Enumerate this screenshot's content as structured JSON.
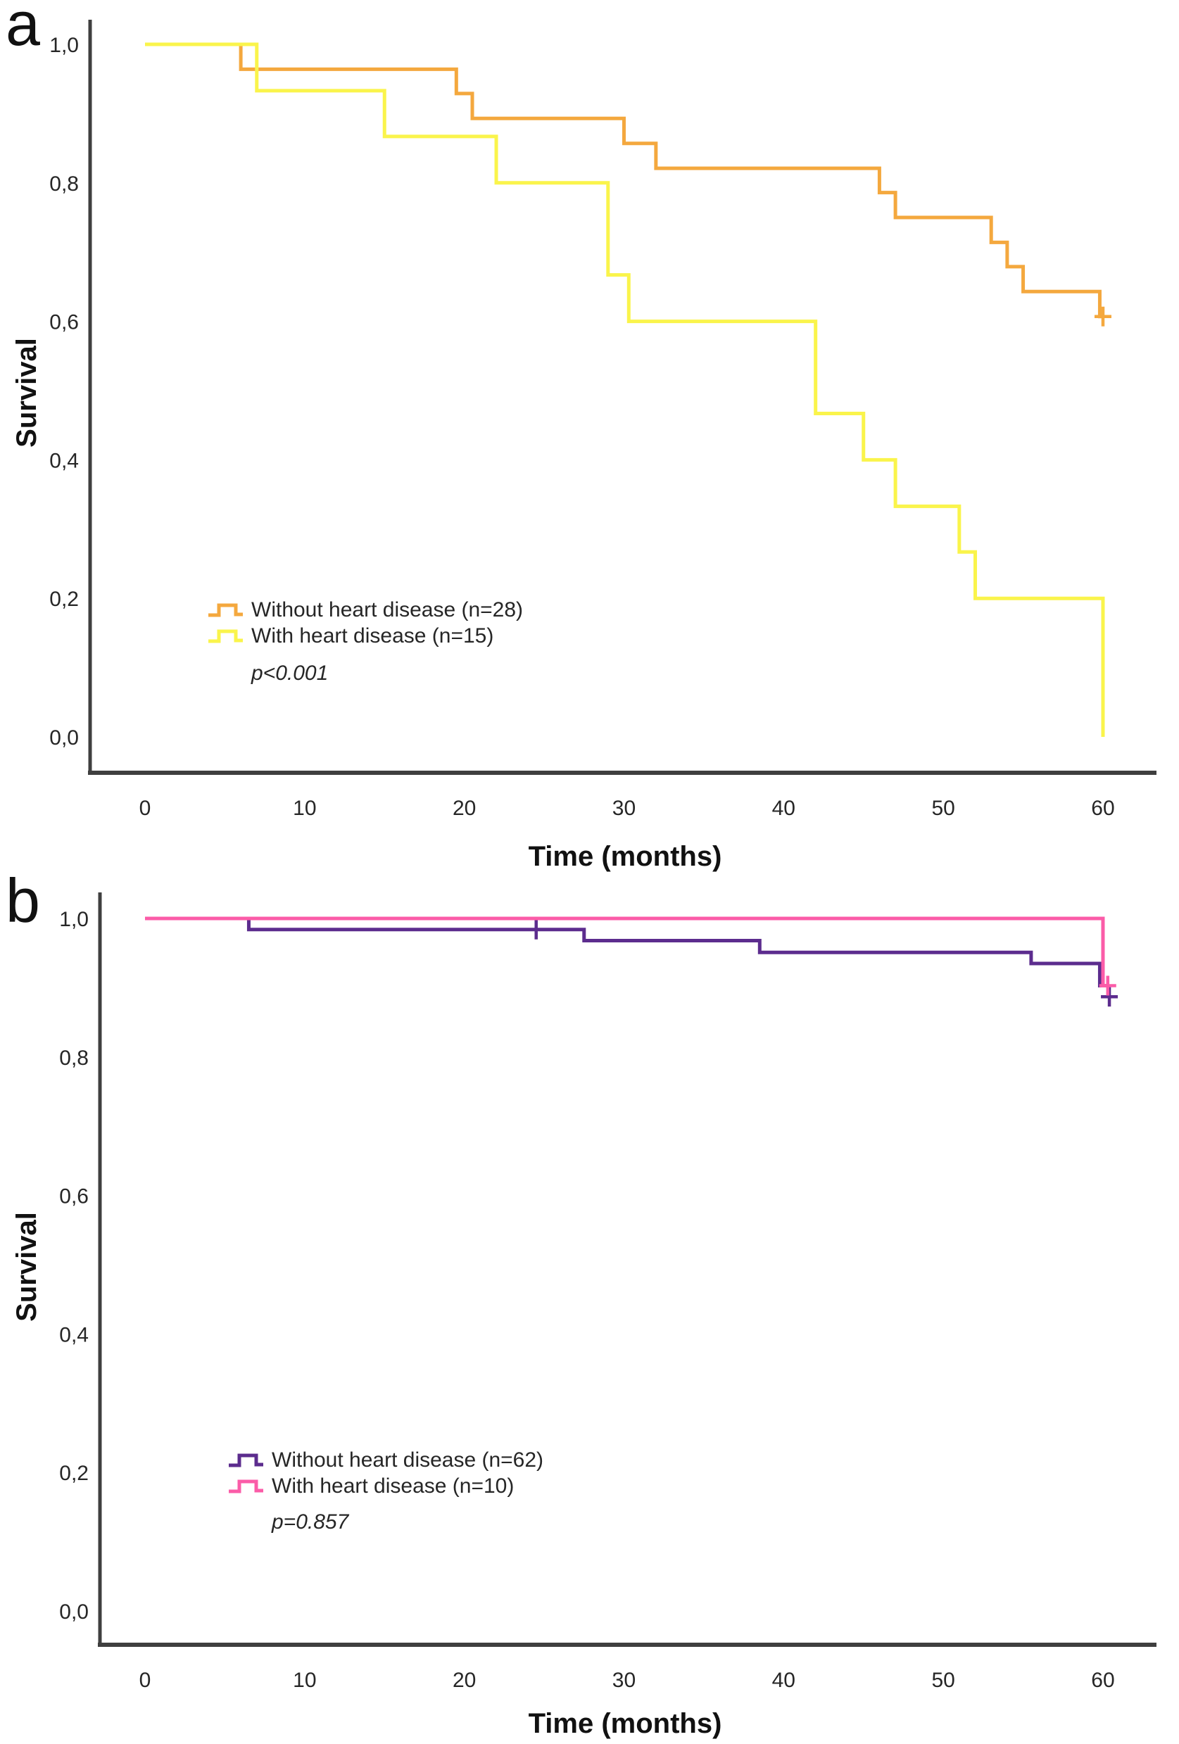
{
  "chart_data": [
    {
      "type": "line",
      "subtype": "kaplan-meier-step",
      "panel_label": "a",
      "xlabel": "Time (months)",
      "ylabel": "Survival",
      "p_value_text": "p<0.001",
      "legend_position": "inside-lower-left",
      "grid": false,
      "xlim": [
        0,
        60
      ],
      "ylim": [
        0.0,
        1.0
      ],
      "x_ticks": [
        0,
        10,
        20,
        30,
        40,
        50,
        60
      ],
      "y_ticks": [
        {
          "label": "1,0",
          "value": 1.0
        },
        {
          "label": "0,8",
          "value": 0.8
        },
        {
          "label": "0,6",
          "value": 0.6
        },
        {
          "label": "0,4",
          "value": 0.4
        },
        {
          "label": "0,2",
          "value": 0.2
        },
        {
          "label": "0,0",
          "value": 0.0
        }
      ],
      "series": [
        {
          "name": "Without heart disease (n=28)",
          "n": 28,
          "color": "#F4A83E",
          "steps": [
            [
              0,
              1.0
            ],
            [
              6,
              0.964
            ],
            [
              19.5,
              0.929
            ],
            [
              20.5,
              0.893
            ],
            [
              30,
              0.857
            ],
            [
              32,
              0.821
            ],
            [
              46,
              0.786
            ],
            [
              47,
              0.75
            ],
            [
              53,
              0.714
            ],
            [
              54,
              0.679
            ],
            [
              55,
              0.643
            ],
            [
              59.8,
              0.607
            ]
          ],
          "end_time": 60,
          "censors": [
            [
              60,
              0.607
            ]
          ]
        },
        {
          "name": "With heart disease (n=15)",
          "n": 15,
          "color": "#FAF44B",
          "steps": [
            [
              0,
              1.0
            ],
            [
              7,
              0.933
            ],
            [
              15,
              0.867
            ],
            [
              22,
              0.8
            ],
            [
              29,
              0.667
            ],
            [
              30.3,
              0.6
            ],
            [
              42,
              0.467
            ],
            [
              45,
              0.4
            ],
            [
              47,
              0.333
            ],
            [
              51,
              0.267
            ],
            [
              52,
              0.2
            ],
            [
              60,
              0.0
            ]
          ],
          "end_time": 60,
          "censors": []
        }
      ]
    },
    {
      "type": "line",
      "subtype": "kaplan-meier-step",
      "panel_label": "b",
      "xlabel": "Time (months)",
      "ylabel": "Survival",
      "p_value_text": "p=0.857",
      "legend_position": "inside-lower-left",
      "grid": false,
      "xlim": [
        0,
        60
      ],
      "ylim": [
        0.0,
        1.0
      ],
      "x_ticks": [
        0,
        10,
        20,
        30,
        40,
        50,
        60
      ],
      "y_ticks": [
        {
          "label": "1,0",
          "value": 1.0
        },
        {
          "label": "0,8",
          "value": 0.8
        },
        {
          "label": "0,6",
          "value": 0.6
        },
        {
          "label": "0,4",
          "value": 0.4
        },
        {
          "label": "0,2",
          "value": 0.2
        },
        {
          "label": "0,0",
          "value": 0.0
        }
      ],
      "series": [
        {
          "name": "Without heart disease (n=62)",
          "n": 62,
          "color": "#5C2C8E",
          "steps": [
            [
              0,
              1.0
            ],
            [
              6.5,
              0.984
            ],
            [
              27.5,
              0.968
            ],
            [
              38.5,
              0.951
            ],
            [
              55.5,
              0.935
            ],
            [
              59.8,
              0.903
            ]
          ],
          "end_time": 60,
          "censors": [
            [
              24.5,
              0.984
            ],
            [
              60.4,
              0.887
            ]
          ]
        },
        {
          "name": "With heart disease (n=10)",
          "n": 10,
          "color": "#FB5CA8",
          "steps": [
            [
              0,
              1.0
            ],
            [
              60,
              0.903
            ]
          ],
          "end_time": 60.3,
          "censors": [
            [
              60.3,
              0.903
            ]
          ]
        }
      ]
    }
  ]
}
